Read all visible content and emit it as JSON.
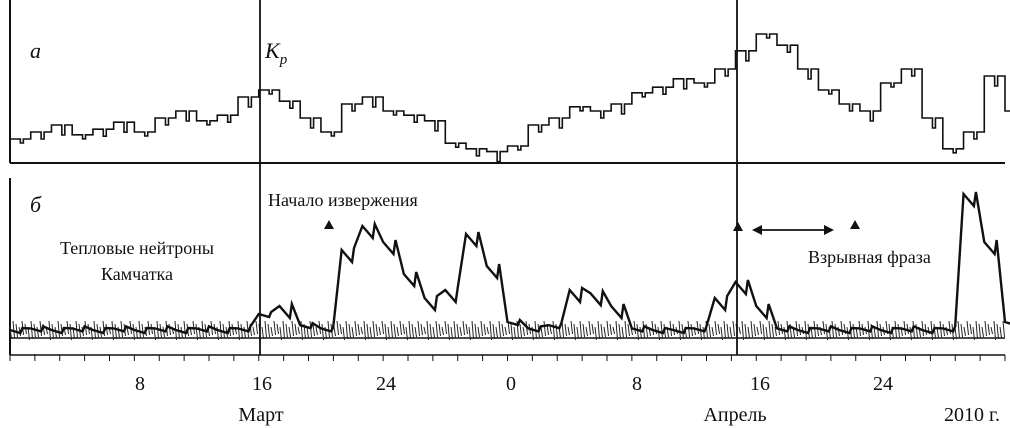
{
  "chart_data": [
    {
      "type": "line",
      "panel_label": "а",
      "series_label_main": "K",
      "series_label_sub": "p",
      "x": [
        0,
        1,
        2,
        3,
        4,
        5,
        6,
        7,
        8,
        9,
        10,
        11,
        12,
        13,
        14,
        15,
        16,
        17,
        18,
        19,
        20,
        21,
        22,
        23,
        24,
        25,
        26,
        27,
        28,
        29,
        30,
        31,
        32,
        33,
        34,
        35,
        36,
        37,
        38,
        39,
        40,
        41,
        42,
        43,
        44,
        45,
        46,
        47,
        48
      ],
      "values": [
        1.5,
        2.0,
        2.5,
        1.8,
        2.2,
        2.7,
        2.0,
        3.0,
        3.5,
        2.8,
        3.2,
        4.5,
        5.0,
        4.2,
        3.0,
        2.0,
        4.0,
        4.5,
        3.5,
        3.2,
        2.8,
        1.2,
        0.8,
        0.6,
        1.0,
        2.5,
        3.0,
        3.8,
        3.5,
        4.0,
        4.8,
        5.2,
        5.8,
        5.5,
        6.5,
        7.8,
        9.0,
        8.2,
        6.5,
        5.0,
        4.0,
        3.5,
        5.5,
        6.5,
        3.0,
        0.8,
        2.0,
        6.0,
        3.5
      ]
    },
    {
      "type": "line",
      "panel_label": "б",
      "title_lines": [
        "Тепловые нейтроны",
        "Камчатка"
      ],
      "x": [
        0,
        1,
        2,
        3,
        4,
        5,
        6,
        7,
        8,
        9,
        10,
        11,
        12,
        13,
        14,
        15,
        16,
        17,
        18,
        19,
        20,
        21,
        22,
        23,
        24,
        25,
        26,
        27,
        28,
        29,
        30,
        31,
        32,
        33,
        34,
        35,
        36,
        37,
        38,
        39,
        40,
        41,
        42,
        43,
        44,
        45,
        46,
        47,
        48
      ],
      "values": [
        0.5,
        0.6,
        0.5,
        0.6,
        0.5,
        0.6,
        0.5,
        0.6,
        0.5,
        0.6,
        0.5,
        0.6,
        1.5,
        2.0,
        0.8,
        0.6,
        5.5,
        7.0,
        6.0,
        4.0,
        2.5,
        3.0,
        6.5,
        4.5,
        1.0,
        0.6,
        0.8,
        3.0,
        2.8,
        2.0,
        0.6,
        0.5,
        0.5,
        0.6,
        2.5,
        3.5,
        2.0,
        0.6,
        0.5,
        0.6,
        0.5,
        0.6,
        0.5,
        0.6,
        0.5,
        0.6,
        9.0,
        6.0,
        1.0
      ]
    }
  ],
  "annotations": {
    "eruption_label": "Начало извержения",
    "phase_label": "Взрывная фраза"
  },
  "axis": {
    "ticks": [
      "8",
      "16",
      "24",
      "0",
      "8",
      "16",
      "24"
    ],
    "month_1": "Март",
    "month_2": "Апрель",
    "year": "2010 г."
  }
}
